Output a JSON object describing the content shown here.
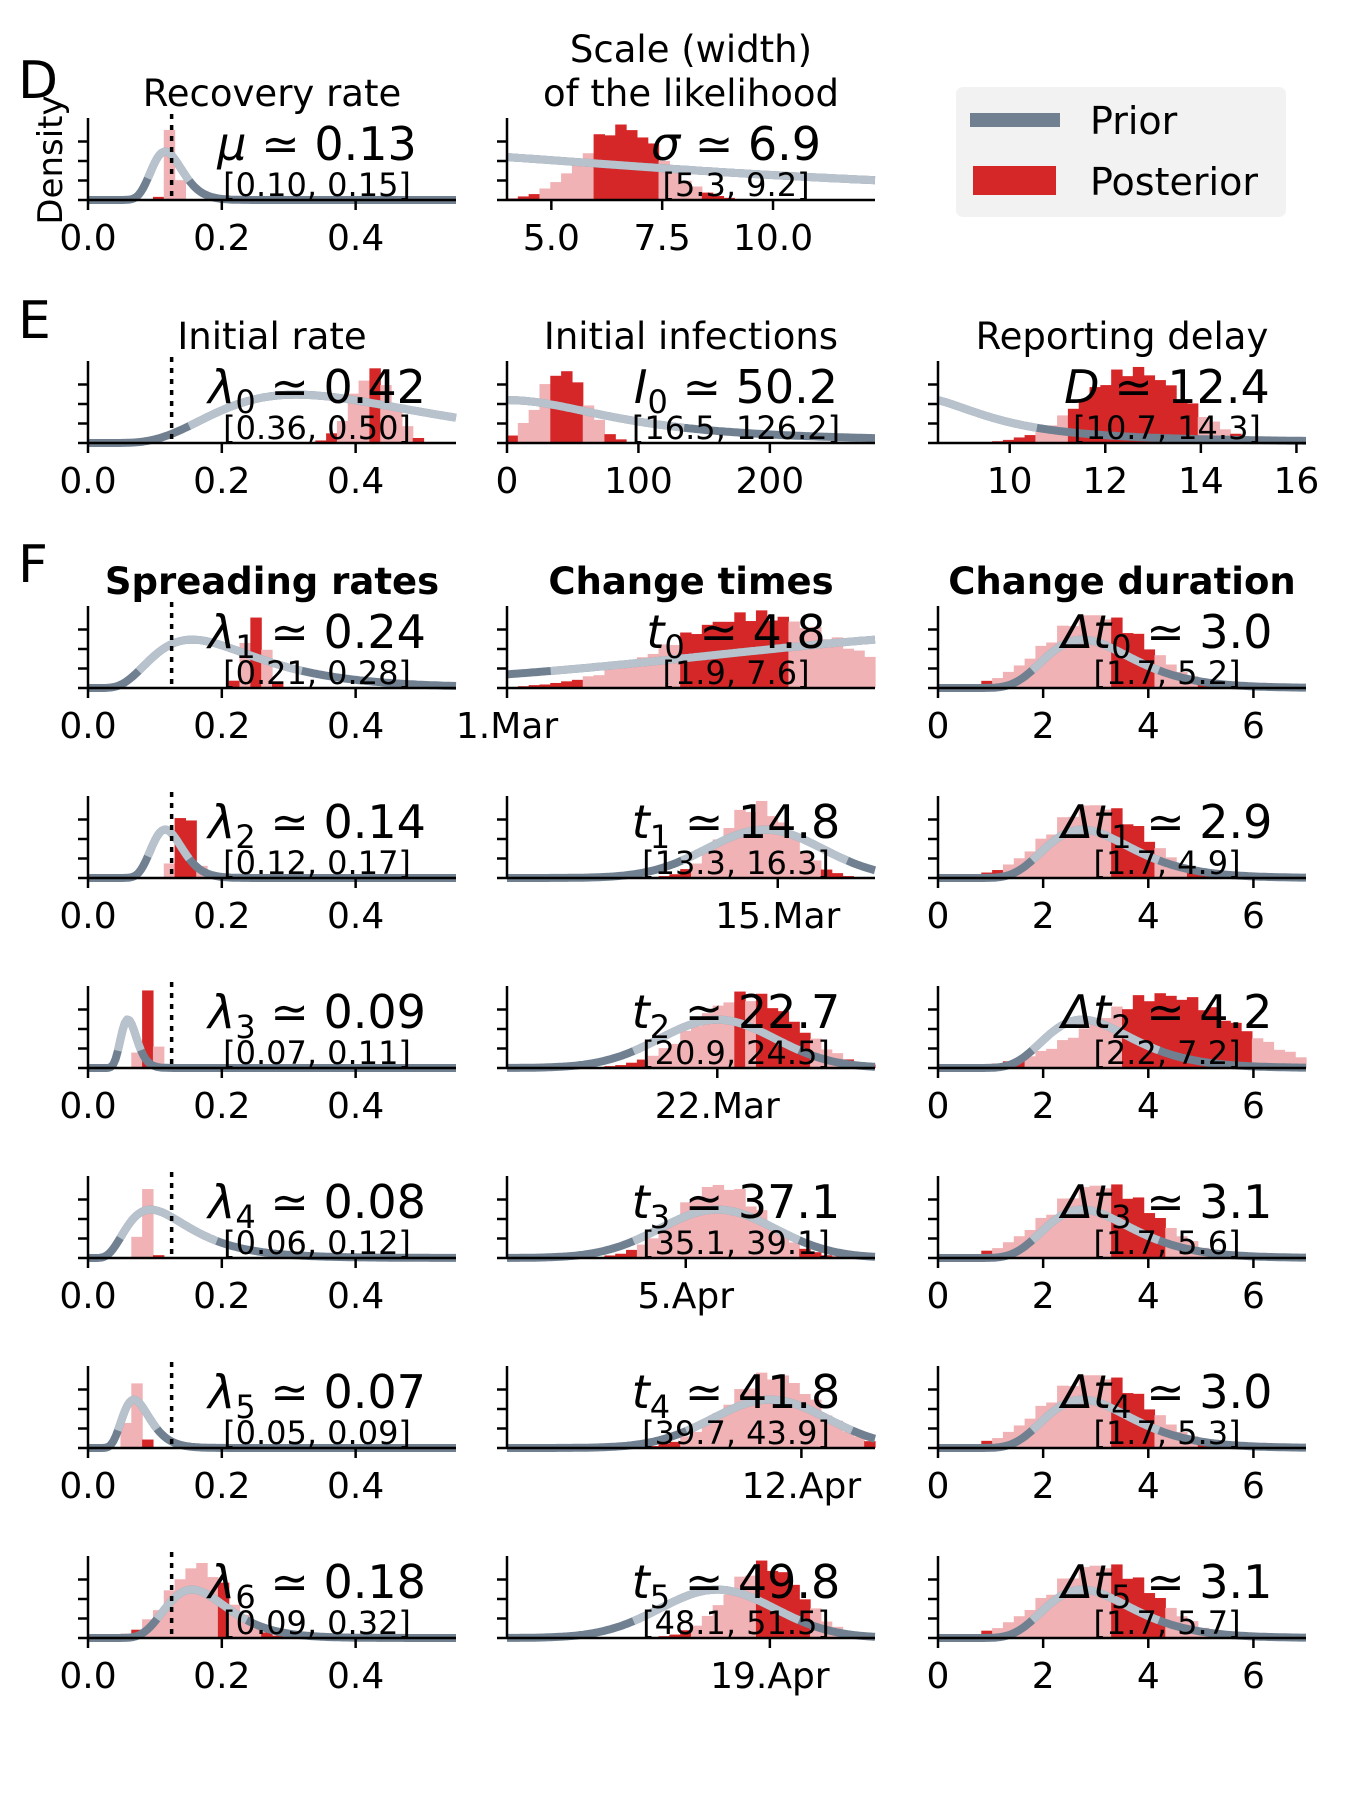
{
  "panel_labels": {
    "D": "D",
    "E": "E",
    "F": "F"
  },
  "legend": {
    "prior_label": "Prior",
    "posterior_label": "Posterior"
  },
  "colors": {
    "prior_dark": "#708090",
    "prior_light": "#b8c2cc",
    "posterior_dark": "#d62728",
    "posterior_light": "#f0b2b4",
    "ref_line": "#000000"
  },
  "dates": {
    "1.Mar": "1.Mar",
    "15.Mar": "15.Mar",
    "22.Mar": "22.Mar",
    "5.Apr": "5.Apr",
    "12.Apr": "12.Apr",
    "19.Apr": "19.Apr"
  },
  "chart_data": [
    {
      "id": "recovery",
      "type": "histogram",
      "title": "Recovery rate",
      "ylabel": "Density",
      "symbol": "μ",
      "subscript": "",
      "value": "0.13",
      "ci": "[0.10, 0.15]",
      "xlim": [
        0,
        0.55
      ],
      "xticks": [
        "0.0",
        "0.2",
        "0.4"
      ],
      "xtick_values": [
        0,
        0.2,
        0.4
      ],
      "ref_line": 0.125,
      "prior": {
        "kind": "lognormal",
        "median": 0.12,
        "sigma": 0.2
      },
      "posterior": {
        "mean": 0.125,
        "sd": 0.008
      }
    },
    {
      "id": "scale",
      "type": "histogram",
      "title": "Scale (width)|of the likelihood",
      "symbol": "σ",
      "subscript": "",
      "value": "6.9",
      "ci": "[5.3, 9.2]",
      "xlim": [
        4,
        12.3
      ],
      "xticks": [
        "5.0",
        "7.5",
        "10.0"
      ],
      "xtick_values": [
        5,
        7.5,
        10
      ],
      "prior": {
        "kind": "halfcauchy",
        "scale": 10
      },
      "posterior": {
        "mean": 6.6,
        "sd": 0.9
      }
    },
    {
      "id": "initial_rate",
      "type": "histogram",
      "title": "Initial rate",
      "symbol": "λ",
      "subscript": "0",
      "value": "0.42",
      "ci": "[0.36, 0.50]",
      "xlim": [
        0,
        0.55
      ],
      "xticks": [
        "0.0",
        "0.2",
        "0.4"
      ],
      "xtick_values": [
        0,
        0.2,
        0.4
      ],
      "ref_line": 0.125,
      "prior": {
        "kind": "lognormal",
        "median": 0.4,
        "sigma": 0.5
      },
      "posterior": {
        "mean": 0.425,
        "sd": 0.03
      }
    },
    {
      "id": "initial_infections",
      "type": "histogram",
      "title": "Initial infections",
      "symbol": "I",
      "subscript": "0",
      "value": "50.2",
      "ci": "[16.5, 126.2]",
      "xlim": [
        0,
        280
      ],
      "xticks": [
        "0",
        "100",
        "200"
      ],
      "xtick_values": [
        0,
        100,
        200
      ],
      "prior": {
        "kind": "halfcauchy",
        "scale": 100
      },
      "posterior": {
        "mean": 42,
        "sd": 18
      }
    },
    {
      "id": "reporting_delay",
      "type": "histogram",
      "title": "Reporting delay",
      "symbol": "D",
      "subscript": "",
      "value": "12.4",
      "ci": "[10.7, 14.3]",
      "xlim": [
        8.5,
        16.2
      ],
      "xticks": [
        "10",
        "12",
        "14",
        "16"
      ],
      "xtick_values": [
        10,
        12,
        14,
        16
      ],
      "prior": {
        "kind": "halfcauchy_shift",
        "center": 8,
        "scale": 1.8
      },
      "posterior": {
        "mean": 12.6,
        "sd": 1.05
      }
    },
    {
      "id": "lambda1",
      "type": "histogram",
      "title": "Spreading rates",
      "bold_title": true,
      "symbol": "λ",
      "subscript": "1",
      "value": "0.24",
      "ci": "[0.21, 0.28]",
      "xlim": [
        0,
        0.55
      ],
      "xticks": [
        "0.0",
        "0.2",
        "0.4"
      ],
      "xtick_values": [
        0,
        0.2,
        0.4
      ],
      "ref_line": 0.125,
      "prior": {
        "kind": "lognormal",
        "median": 0.2,
        "sigma": 0.5
      },
      "posterior": {
        "mean": 0.25,
        "sd": 0.015
      }
    },
    {
      "id": "t0",
      "type": "histogram",
      "title": "Change times",
      "bold_title": true,
      "symbol": "t",
      "subscript": "0",
      "value": "4.8",
      "ci": "[1.9, 7.6]",
      "xlim": [
        0,
        14
      ],
      "xticks": [
        "1.Mar"
      ],
      "xtick_values": [
        0
      ],
      "prior": {
        "kind": "normal",
        "mean": 20,
        "sd": 12
      },
      "posterior": {
        "mean": 9.5,
        "sd": 3.3
      }
    },
    {
      "id": "dt0",
      "type": "histogram",
      "title": "Change duration",
      "bold_title": true,
      "symbol": "Δt",
      "subscript": "0",
      "value": "3.0",
      "ci": "[1.7, 5.2]",
      "xlim": [
        0,
        7
      ],
      "xticks": [
        "0",
        "2",
        "4",
        "6"
      ],
      "xtick_values": [
        0,
        2,
        4,
        6
      ],
      "prior": {
        "kind": "lognormal",
        "median": 3,
        "sigma": 0.3
      },
      "posterior": {
        "mean": 3.0,
        "sd": 0.95
      }
    },
    {
      "id": "lambda2",
      "type": "histogram",
      "symbol": "λ",
      "subscript": "2",
      "value": "0.14",
      "ci": "[0.12, 0.17]",
      "xlim": [
        0,
        0.55
      ],
      "xticks": [
        "0.0",
        "0.2",
        "0.4"
      ],
      "xtick_values": [
        0,
        0.2,
        0.4
      ],
      "ref_line": 0.125,
      "prior": {
        "kind": "lognormal",
        "median": 0.12,
        "sigma": 0.2
      },
      "posterior": {
        "mean": 0.145,
        "sd": 0.013
      }
    },
    {
      "id": "t1",
      "type": "histogram",
      "symbol": "t",
      "subscript": "1",
      "value": "14.8",
      "ci": "[13.3, 16.3]",
      "xlim": [
        0,
        14
      ],
      "xticks": [
        "15.Mar"
      ],
      "xtick_values": [
        10.3
      ],
      "prior": {
        "kind": "normal",
        "mean": 9.8,
        "sd": 2.2
      },
      "posterior": {
        "mean": 9.5,
        "sd": 1.3
      }
    },
    {
      "id": "dt1",
      "type": "histogram",
      "symbol": "Δt",
      "subscript": "1",
      "value": "2.9",
      "ci": "[1.7, 4.9]",
      "xlim": [
        0,
        7
      ],
      "xticks": [
        "0",
        "2",
        "4",
        "6"
      ],
      "xtick_values": [
        0,
        2,
        4,
        6
      ],
      "prior": {
        "kind": "lognormal",
        "median": 3,
        "sigma": 0.3
      },
      "posterior": {
        "mean": 3.0,
        "sd": 0.9
      }
    },
    {
      "id": "lambda3",
      "type": "histogram",
      "symbol": "λ",
      "subscript": "3",
      "value": "0.09",
      "ci": "[0.07, 0.11]",
      "xlim": [
        0,
        0.55
      ],
      "xticks": [
        "0.0",
        "0.2",
        "0.4"
      ],
      "xtick_values": [
        0,
        0.2,
        0.4
      ],
      "ref_line": 0.125,
      "prior": {
        "kind": "lognormal",
        "median": 0.062,
        "sigma": 0.2
      },
      "posterior": {
        "mean": 0.09,
        "sd": 0.01
      }
    },
    {
      "id": "t2",
      "type": "histogram",
      "symbol": "t",
      "subscript": "2",
      "value": "22.7",
      "ci": "[20.9, 24.5]",
      "xlim": [
        0,
        14
      ],
      "xticks": [
        "22.Mar"
      ],
      "xtick_values": [
        8
      ],
      "prior": {
        "kind": "normal",
        "mean": 8,
        "sd": 2.2
      },
      "posterior": {
        "mean": 9.1,
        "sd": 1.9
      }
    },
    {
      "id": "dt2",
      "type": "histogram",
      "symbol": "Δt",
      "subscript": "2",
      "value": "4.2",
      "ci": "[2.2, 7.2]",
      "xlim": [
        0,
        7
      ],
      "xticks": [
        "0",
        "2",
        "4",
        "6"
      ],
      "xtick_values": [
        0,
        2,
        4,
        6
      ],
      "prior": {
        "kind": "lognormal",
        "median": 3,
        "sigma": 0.3
      },
      "posterior": {
        "mean": 4.3,
        "sd": 1.35
      }
    },
    {
      "id": "lambda4",
      "type": "histogram",
      "symbol": "λ",
      "subscript": "4",
      "value": "0.08",
      "ci": "[0.06, 0.12]",
      "xlim": [
        0,
        0.55
      ],
      "xticks": [
        "0.0",
        "0.2",
        "0.4"
      ],
      "xtick_values": [
        0,
        0.2,
        0.4
      ],
      "ref_line": 0.125,
      "prior": {
        "kind": "lognormal",
        "median": 0.12,
        "sigma": 0.5
      },
      "posterior": {
        "mean": 0.085,
        "sd": 0.008
      }
    },
    {
      "id": "t3",
      "type": "histogram",
      "symbol": "t",
      "subscript": "3",
      "value": "37.1",
      "ci": "[35.1, 39.1]",
      "xlim": [
        0,
        14
      ],
      "xticks": [
        "5.Apr"
      ],
      "xtick_values": [
        6.8
      ],
      "prior": {
        "kind": "normal",
        "mean": 8,
        "sd": 2.2
      },
      "posterior": {
        "mean": 8.1,
        "sd": 1.6
      }
    },
    {
      "id": "dt3",
      "type": "histogram",
      "symbol": "Δt",
      "subscript": "3",
      "value": "3.1",
      "ci": "[1.7, 5.6]",
      "xlim": [
        0,
        7
      ],
      "xticks": [
        "0",
        "2",
        "4",
        "6"
      ],
      "xtick_values": [
        0,
        2,
        4,
        6
      ],
      "prior": {
        "kind": "lognormal",
        "median": 3,
        "sigma": 0.3
      },
      "posterior": {
        "mean": 3.1,
        "sd": 1.0
      }
    },
    {
      "id": "lambda5",
      "type": "histogram",
      "symbol": "λ",
      "subscript": "5",
      "value": "0.07",
      "ci": "[0.05, 0.09]",
      "xlim": [
        0,
        0.55
      ],
      "xticks": [
        "0.0",
        "0.2",
        "0.4"
      ],
      "xtick_values": [
        0,
        0.2,
        0.4
      ],
      "ref_line": 0.125,
      "prior": {
        "kind": "lognormal",
        "median": 0.075,
        "sigma": 0.3
      },
      "posterior": {
        "mean": 0.07,
        "sd": 0.009
      }
    },
    {
      "id": "t4",
      "type": "histogram",
      "symbol": "t",
      "subscript": "4",
      "value": "41.8",
      "ci": "[39.7, 43.9]",
      "xlim": [
        0,
        14
      ],
      "xticks": [
        "12.Apr"
      ],
      "xtick_values": [
        11.2
      ],
      "prior": {
        "kind": "normal",
        "mean": 10,
        "sd": 2.2
      },
      "posterior": {
        "mean": 10.1,
        "sd": 1.7
      }
    },
    {
      "id": "dt4",
      "type": "histogram",
      "symbol": "Δt",
      "subscript": "4",
      "value": "3.0",
      "ci": "[1.7, 5.3]",
      "xlim": [
        0,
        7
      ],
      "xticks": [
        "0",
        "2",
        "4",
        "6"
      ],
      "xtick_values": [
        0,
        2,
        4,
        6
      ],
      "prior": {
        "kind": "lognormal",
        "median": 3,
        "sigma": 0.3
      },
      "posterior": {
        "mean": 3.0,
        "sd": 0.95
      }
    },
    {
      "id": "lambda6",
      "type": "histogram",
      "symbol": "λ",
      "subscript": "6",
      "value": "0.18",
      "ci": "[0.09, 0.32]",
      "xlim": [
        0,
        0.55
      ],
      "xticks": [
        "0.0",
        "0.2",
        "0.4"
      ],
      "xtick_values": [
        0,
        0.2,
        0.4
      ],
      "ref_line": 0.125,
      "prior": {
        "kind": "lognormal",
        "median": 0.17,
        "sigma": 0.3
      },
      "posterior": {
        "mean": 0.165,
        "sd": 0.045
      }
    },
    {
      "id": "t5",
      "type": "histogram",
      "symbol": "t",
      "subscript": "5",
      "value": "49.8",
      "ci": "[48.1, 51.5]",
      "xlim": [
        0,
        14
      ],
      "xticks": [
        "19.Apr"
      ],
      "xtick_values": [
        10
      ],
      "prior": {
        "kind": "normal",
        "mean": 8,
        "sd": 2.2
      },
      "posterior": {
        "mean": 9.8,
        "sd": 1.4
      }
    },
    {
      "id": "dt5",
      "type": "histogram",
      "symbol": "Δt",
      "subscript": "5",
      "value": "3.1",
      "ci": "[1.7, 5.7]",
      "xlim": [
        0,
        7
      ],
      "xticks": [
        "0",
        "2",
        "4",
        "6"
      ],
      "xtick_values": [
        0,
        2,
        4,
        6
      ],
      "prior": {
        "kind": "lognormal",
        "median": 3,
        "sigma": 0.3
      },
      "posterior": {
        "mean": 3.1,
        "sd": 1.0
      }
    }
  ]
}
